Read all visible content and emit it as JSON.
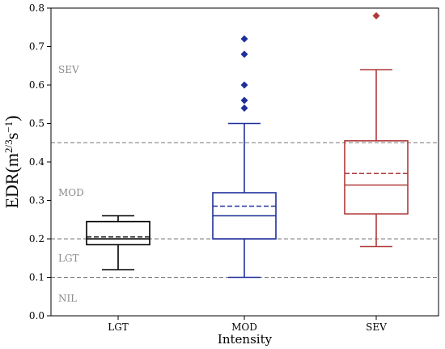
{
  "chart_data": {
    "type": "box",
    "xlabel": "Intensity",
    "ylabel": {
      "base": "EDR(m",
      "sup1": "2/3",
      "mid": "s",
      "sup2": "−1",
      "end": ")"
    },
    "ylim": [
      0.0,
      0.8
    ],
    "yticks": [
      "0.0",
      "0.1",
      "0.2",
      "0.3",
      "0.4",
      "0.5",
      "0.6",
      "0.7",
      "0.8"
    ],
    "threshold_lines": [
      0.1,
      0.2,
      0.45
    ],
    "bands": [
      {
        "label": "SEV",
        "y": 0.64
      },
      {
        "label": "MOD",
        "y": 0.32
      },
      {
        "label": "LGT",
        "y": 0.15
      },
      {
        "label": "NIL",
        "y": 0.045
      }
    ],
    "categories": [
      "LGT",
      "MOD",
      "SEV"
    ],
    "boxes": [
      {
        "category": "LGT",
        "color": "#000000",
        "whisker_low": 0.12,
        "q1": 0.185,
        "median": 0.2,
        "mean": 0.205,
        "q3": 0.245,
        "whisker_high": 0.26,
        "outliers": []
      },
      {
        "category": "MOD",
        "color": "#1f2f9a",
        "whisker_low": 0.1,
        "q1": 0.2,
        "median": 0.26,
        "mean": 0.285,
        "q3": 0.32,
        "whisker_high": 0.5,
        "outliers": [
          0.54,
          0.56,
          0.6,
          0.68,
          0.72
        ]
      },
      {
        "category": "SEV",
        "color": "#b03a3a",
        "whisker_low": 0.18,
        "q1": 0.265,
        "median": 0.34,
        "mean": 0.37,
        "q3": 0.455,
        "whisker_high": 0.64,
        "outliers": [
          0.78
        ]
      }
    ],
    "grid": false,
    "legend": "none"
  }
}
